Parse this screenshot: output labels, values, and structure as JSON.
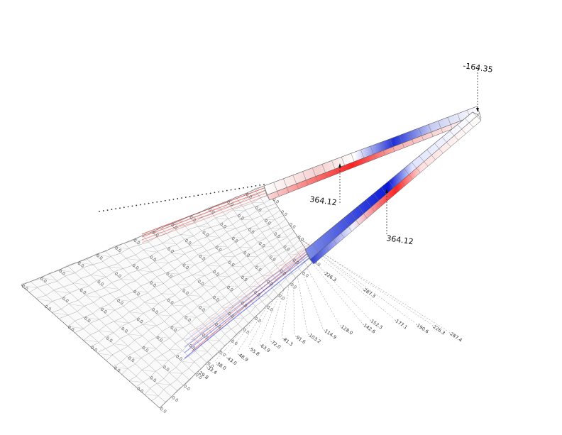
{
  "diagram": {
    "peak_values": {
      "apex": "-164.35",
      "upper_member": "364.12",
      "lower_member": "364.12"
    },
    "side_scale_labels": [
      "-226.3",
      "-287.3",
      "-142.6",
      "-152.3",
      "-177.1",
      "-190.6",
      "-226.3",
      "-287.4",
      "-128.0",
      "-114.9",
      "-103.2",
      "-91.6",
      "-81.3",
      "-72.0",
      "-63.9",
      "-55.8",
      "-48.9",
      "-43.0",
      "-38.0",
      "-33.4",
      "-29.8"
    ],
    "mesh_value_label": "0.0",
    "colors": {
      "compression": "#d40000",
      "tension": "#1020d0",
      "neutral": "#ffffff",
      "mesh_line": "#9a9a9a",
      "outline": "#222222"
    }
  }
}
